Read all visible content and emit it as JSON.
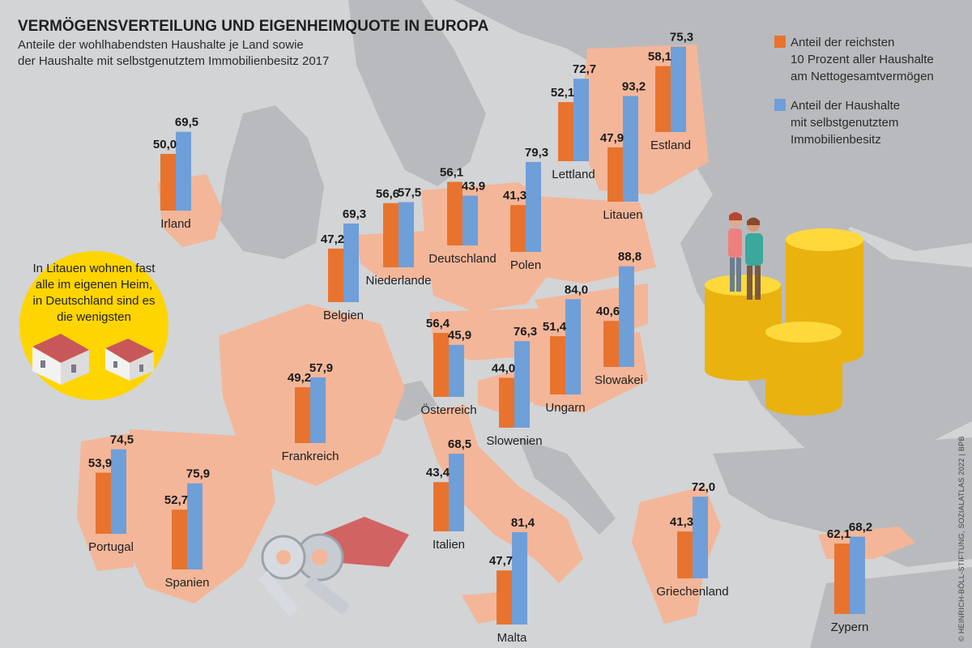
{
  "title": "VERMÖGENSVERTEILUNG UND EIGENHEIMQUOTE IN EUROPA",
  "subtitle_lines": [
    "Anteile der wohlhabendsten Haushalte je Land sowie",
    "der Haushalte mit selbstgenutztem Immobilienbesitz 2017"
  ],
  "legend": {
    "wealth_lines": [
      "Anteil der reichsten",
      "10 Prozent aller Haushalte",
      "am Nettogesamtvermögen"
    ],
    "home_lines": [
      "Anteil der Haushalte",
      "mit selbstgenutztem",
      "Immobilienbesitz"
    ]
  },
  "callout_lines": [
    "In Litauen wohnen fast",
    "alle im eigenen Heim,",
    "in Deutschland sind es",
    "die wenigsten"
  ],
  "credit": "© HEINRICH-BÖLL-STIFTUNG, SOZIALATLAS 2022 | BPB",
  "colors": {
    "wealth": "#e8732e",
    "home": "#6f9fd8",
    "sea": "#d3d4d6",
    "highlight_land": "#f3b699",
    "other_land": "#b9babd",
    "callout": "#ffd500",
    "coin": "#f5c518"
  },
  "chart_data": {
    "type": "bar",
    "series": [
      {
        "name": "Anteil der reichsten 10 Prozent aller Haushalte am Nettogesamtvermögen",
        "key": "wealth"
      },
      {
        "name": "Anteil der Haushalte mit selbstgenutztem Immobilienbesitz",
        "key": "home"
      }
    ],
    "countries": [
      {
        "name": "Irland",
        "wealth": 50.0,
        "home": 69.5,
        "wealth_label": "50,0",
        "home_label": "69,5"
      },
      {
        "name": "Belgien",
        "wealth": 47.2,
        "home": 69.3,
        "wealth_label": "47,2",
        "home_label": "69,3"
      },
      {
        "name": "Niederlande",
        "wealth": 56.6,
        "home": 57.5,
        "wealth_label": "56,6",
        "home_label": "57,5"
      },
      {
        "name": "Deutschland",
        "wealth": 56.1,
        "home": 43.9,
        "wealth_label": "56,1",
        "home_label": "43,9"
      },
      {
        "name": "Polen",
        "wealth": 41.3,
        "home": 79.3,
        "wealth_label": "41,3",
        "home_label": "79,3"
      },
      {
        "name": "Lettland",
        "wealth": 52.1,
        "home": 72.7,
        "wealth_label": "52,1",
        "home_label": "72,7"
      },
      {
        "name": "Litauen",
        "wealth": 47.9,
        "home": 93.2,
        "wealth_label": "47,9",
        "home_label": "93,2"
      },
      {
        "name": "Estland",
        "wealth": 58.1,
        "home": 75.3,
        "wealth_label": "58,1",
        "home_label": "75,3"
      },
      {
        "name": "Frankreich",
        "wealth": 49.2,
        "home": 57.9,
        "wealth_label": "49,2",
        "home_label": "57,9"
      },
      {
        "name": "Österreich",
        "wealth": 56.4,
        "home": 45.9,
        "wealth_label": "56,4",
        "home_label": "45,9"
      },
      {
        "name": "Slowenien",
        "wealth": 44.0,
        "home": 76.3,
        "wealth_label": "44,0",
        "home_label": "76,3"
      },
      {
        "name": "Ungarn",
        "wealth": 51.4,
        "home": 84.0,
        "wealth_label": "51,4",
        "home_label": "84,0"
      },
      {
        "name": "Slowakei",
        "wealth": 40.6,
        "home": 88.8,
        "wealth_label": "40,6",
        "home_label": "88,8"
      },
      {
        "name": "Portugal",
        "wealth": 53.9,
        "home": 74.5,
        "wealth_label": "53,9",
        "home_label": "74,5"
      },
      {
        "name": "Spanien",
        "wealth": 52.7,
        "home": 75.9,
        "wealth_label": "52,7",
        "home_label": "75,9"
      },
      {
        "name": "Italien",
        "wealth": 43.4,
        "home": 68.5,
        "wealth_label": "43,4",
        "home_label": "68,5"
      },
      {
        "name": "Malta",
        "wealth": 47.7,
        "home": 81.4,
        "wealth_label": "47,7",
        "home_label": "81,4"
      },
      {
        "name": "Griechenland",
        "wealth": 41.3,
        "home": 72.0,
        "wealth_label": "41,3",
        "home_label": "72,0"
      },
      {
        "name": "Zypern",
        "wealth": 62.1,
        "home": 68.2,
        "wealth_label": "62,1",
        "home_label": "68,2"
      }
    ]
  }
}
